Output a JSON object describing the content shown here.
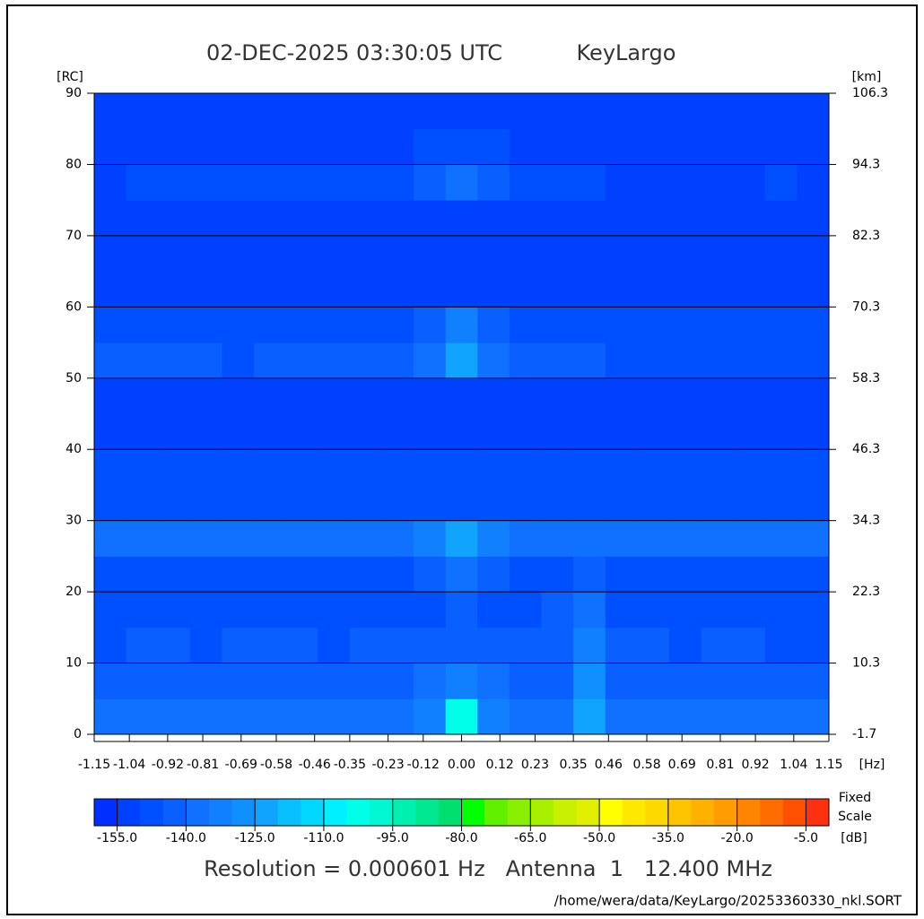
{
  "chart_data": {
    "type": "heatmap",
    "title": "02-DEC-2025 03:30:05 UTC",
    "site": "KeyLargo",
    "ylabel": "[RC]",
    "y2label": "[km]",
    "xlabel": "[Hz]",
    "colorbar_label": "[dB]",
    "colorbar_note": "Fixed Scale",
    "footer": "Resolution = 0.000601 Hz   Antenna  1   12.400 MHz",
    "path": "/home/wera/data/KeyLargo/20253360330_nkl.SORT",
    "xlim": [
      -1.15,
      1.15
    ],
    "xticks": [
      -1.15,
      -1.04,
      -0.92,
      -0.81,
      -0.69,
      -0.58,
      -0.46,
      -0.35,
      -0.23,
      -0.12,
      {
        "value": 0,
        "label": "0.00"
      },
      0.12,
      0.23,
      0.35,
      0.46,
      0.58,
      0.69,
      0.81,
      0.92,
      1.04,
      1.15
    ],
    "ylim": [
      0,
      90
    ],
    "yticks": [
      0,
      10,
      20,
      30,
      40,
      50,
      60,
      70,
      80,
      90
    ],
    "y2lim": [
      -1.7,
      106.3
    ],
    "y2ticks": [
      -1.7,
      10.3,
      22.3,
      34.3,
      46.3,
      58.3,
      70.3,
      82.3,
      94.3,
      106.3
    ],
    "grid": true,
    "zlim": [
      -160,
      0
    ],
    "zticks": [
      {
        "value": -155,
        "label": "-155.0"
      },
      {
        "value": -140,
        "label": "-140.0"
      },
      {
        "value": -125,
        "label": "-125.0"
      },
      {
        "value": -110,
        "label": "-110.0"
      },
      {
        "value": -95,
        "label": "-95.0"
      },
      {
        "value": -80,
        "label": "-80.0"
      },
      {
        "value": -65,
        "label": "-65.0"
      },
      {
        "value": -50,
        "label": "-50.0"
      },
      {
        "value": -35,
        "label": "-35.0"
      },
      {
        "value": -20,
        "label": "-20.0"
      },
      {
        "value": -5,
        "label": "-5.0"
      }
    ],
    "colors": [
      "#0030ff",
      "#0040ff",
      "#0050ff",
      "#0a60ff",
      "#1070ff",
      "#1080ff",
      "#1090ff",
      "#10a4ff",
      "#08c0ff",
      "#00d8ff",
      "#00f0ff",
      "#00ffe8",
      "#00f8d0",
      "#00f0b0",
      "#00e890",
      "#00e070",
      "#00ff00",
      "#60f000",
      "#88f000",
      "#a8f000",
      "#c8f000",
      "#e0f000",
      "#ffff00",
      "#ffe800",
      "#ffd800",
      "#ffc400",
      "#ffb000",
      "#ff9c00",
      "#ff8400",
      "#ff6c00",
      "#ff5000",
      "#ff3010"
    ],
    "x": [
      -1.1,
      -1.0,
      -0.9,
      -0.8,
      -0.7,
      -0.6,
      -0.5,
      -0.4,
      -0.3,
      -0.2,
      -0.1,
      0,
      0.1,
      0.2,
      0.3,
      0.4,
      0.5,
      0.6,
      0.7,
      0.8,
      0.9,
      1.0,
      1.1
    ],
    "y": [
      2.5,
      7.5,
      12.5,
      17.5,
      22.5,
      27.5,
      32.5,
      37.5,
      42.5,
      47.5,
      52.5,
      57.5,
      62.5,
      67.5,
      72.5,
      77.5,
      82.5,
      87.5
    ],
    "z": [
      [
        -140,
        -138,
        -138,
        -139,
        -138,
        -137,
        -138,
        -138,
        -137,
        -136,
        -132,
        -105,
        -132,
        -136,
        -137,
        -125,
        -138,
        -138,
        -139,
        -138,
        -138,
        -139,
        -140
      ],
      [
        -144,
        -143,
        -143,
        -144,
        -143,
        -143,
        -143,
        -144,
        -143,
        -142,
        -140,
        -135,
        -140,
        -142,
        -142,
        -128,
        -143,
        -143,
        -144,
        -143,
        -143,
        -144,
        -144
      ],
      [
        -146,
        -145,
        -145,
        -146,
        -145,
        -145,
        -145,
        -146,
        -145,
        -145,
        -144,
        -143,
        -144,
        -145,
        -144,
        -132,
        -145,
        -145,
        -146,
        -145,
        -145,
        -146,
        -146
      ],
      [
        -147,
        -146,
        -146,
        -147,
        -146,
        -146,
        -146,
        -147,
        -146,
        -146,
        -146,
        -145,
        -146,
        -146,
        -144,
        -138,
        -146,
        -146,
        -147,
        -146,
        -146,
        -147,
        -147
      ],
      [
        -147,
        -146,
        -146,
        -147,
        -146,
        -146,
        -146,
        -147,
        -146,
        -146,
        -145,
        -140,
        -145,
        -146,
        -146,
        -144,
        -146,
        -146,
        -147,
        -146,
        -146,
        -147,
        -147
      ],
      [
        -140,
        -138,
        -138,
        -139,
        -140,
        -138,
        -139,
        -138,
        -138,
        -137,
        -134,
        -125,
        -134,
        -137,
        -138,
        -139,
        -140,
        -139,
        -140,
        -139,
        -138,
        -140,
        -140
      ],
      [
        -150,
        -150,
        -150,
        -150,
        -150,
        -150,
        -150,
        -150,
        -150,
        -150,
        -150,
        -149,
        -150,
        -150,
        -150,
        -150,
        -150,
        -150,
        -150,
        -150,
        -150,
        -150,
        -150
      ],
      [
        -150,
        -150,
        -150,
        -150,
        -150,
        -150,
        -150,
        -150,
        -150,
        -150,
        -150,
        -150,
        -150,
        -150,
        -150,
        -150,
        -150,
        -150,
        -150,
        -150,
        -150,
        -150,
        -150
      ],
      [
        -151,
        -151,
        -151,
        -151,
        -151,
        -151,
        -151,
        -151,
        -151,
        -151,
        -151,
        -151,
        -151,
        -151,
        -151,
        -151,
        -151,
        -151,
        -151,
        -151,
        -151,
        -151,
        -151
      ],
      [
        -151,
        -151,
        -151,
        -151,
        -151,
        -151,
        -151,
        -151,
        -151,
        -151,
        -151,
        -151,
        -151,
        -151,
        -151,
        -151,
        -151,
        -151,
        -151,
        -151,
        -151,
        -151,
        -151
      ],
      [
        -145,
        -144,
        -145,
        -144,
        -146,
        -145,
        -144,
        -145,
        -144,
        -143,
        -140,
        -125,
        -140,
        -143,
        -144,
        -144,
        -147,
        -147,
        -148,
        -148,
        -147,
        -148,
        -148
      ],
      [
        -148,
        -147,
        -148,
        -147,
        -148,
        -148,
        -147,
        -148,
        -147,
        -147,
        -145,
        -135,
        -145,
        -147,
        -148,
        -149,
        -149,
        -149,
        -150,
        -150,
        -149,
        -150,
        -150
      ],
      [
        -153,
        -153,
        -153,
        -153,
        -153,
        -153,
        -153,
        -153,
        -153,
        -153,
        -153,
        -153,
        -153,
        -153,
        -153,
        -153,
        -153,
        -153,
        -153,
        -153,
        -153,
        -153,
        -153
      ],
      [
        -153,
        -153,
        -153,
        -153,
        -153,
        -153,
        -153,
        -153,
        -153,
        -153,
        -153,
        -153,
        -153,
        -153,
        -153,
        -153,
        -153,
        -153,
        -153,
        -153,
        -153,
        -153,
        -153
      ],
      [
        -153,
        -153,
        -153,
        -153,
        -153,
        -153,
        -153,
        -153,
        -153,
        -153,
        -153,
        -153,
        -153,
        -153,
        -153,
        -153,
        -153,
        -153,
        -153,
        -153,
        -153,
        -153,
        -153
      ],
      [
        -151,
        -150,
        -150,
        -149,
        -150,
        -150,
        -150,
        -150,
        -150,
        -149,
        -145,
        -140,
        -145,
        -149,
        -150,
        -150,
        -151,
        -151,
        -151,
        -151,
        -151,
        -150,
        -151
      ],
      [
        -153,
        -152,
        -152,
        -152,
        -152,
        -152,
        -152,
        -152,
        -152,
        -152,
        -150,
        -146,
        -150,
        -152,
        -152,
        -152,
        -153,
        -153,
        -153,
        -153,
        -153,
        -152,
        -153
      ],
      [
        -153,
        -153,
        -153,
        -153,
        -153,
        -153,
        -153,
        -153,
        -153,
        -153,
        -153,
        -153,
        -153,
        -153,
        -153,
        -153,
        -153,
        -153,
        -153,
        -153,
        -153,
        -153,
        -153
      ]
    ]
  }
}
